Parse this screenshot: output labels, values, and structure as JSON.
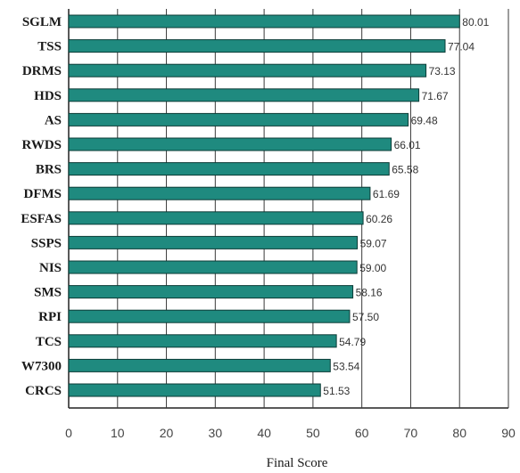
{
  "chart_data": {
    "type": "bar",
    "orientation": "horizontal",
    "categories": [
      "SGLM",
      "TSS",
      "DRMS",
      "HDS",
      "AS",
      "RWDS",
      "BRS",
      "DFMS",
      "ESFAS",
      "SSPS",
      "NIS",
      "SMS",
      "RPI",
      "TCS",
      "W7300",
      "CRCS"
    ],
    "values": [
      80.01,
      77.04,
      73.13,
      71.67,
      69.48,
      66.01,
      65.58,
      61.69,
      60.26,
      59.07,
      59.0,
      58.16,
      57.5,
      54.79,
      53.54,
      51.53
    ],
    "value_labels": [
      "80.01",
      "77.04",
      "73.13",
      "71.67",
      "69.48",
      "66.01",
      "65.58",
      "61.69",
      "60.26",
      "59.07",
      "59.00",
      "58.16",
      "57.50",
      "54.79",
      "53.54",
      "51.53"
    ],
    "title": "",
    "xlabel": "Final Score",
    "ylabel": "",
    "xlim": [
      0,
      90
    ],
    "x_ticks": [
      "0",
      "10",
      "20",
      "30",
      "40",
      "50",
      "60",
      "70",
      "80",
      "90"
    ],
    "grid": "vertical",
    "legend": "none",
    "bar_color": "#1f8a7f",
    "bar_edge_color": "#0b3b36"
  }
}
